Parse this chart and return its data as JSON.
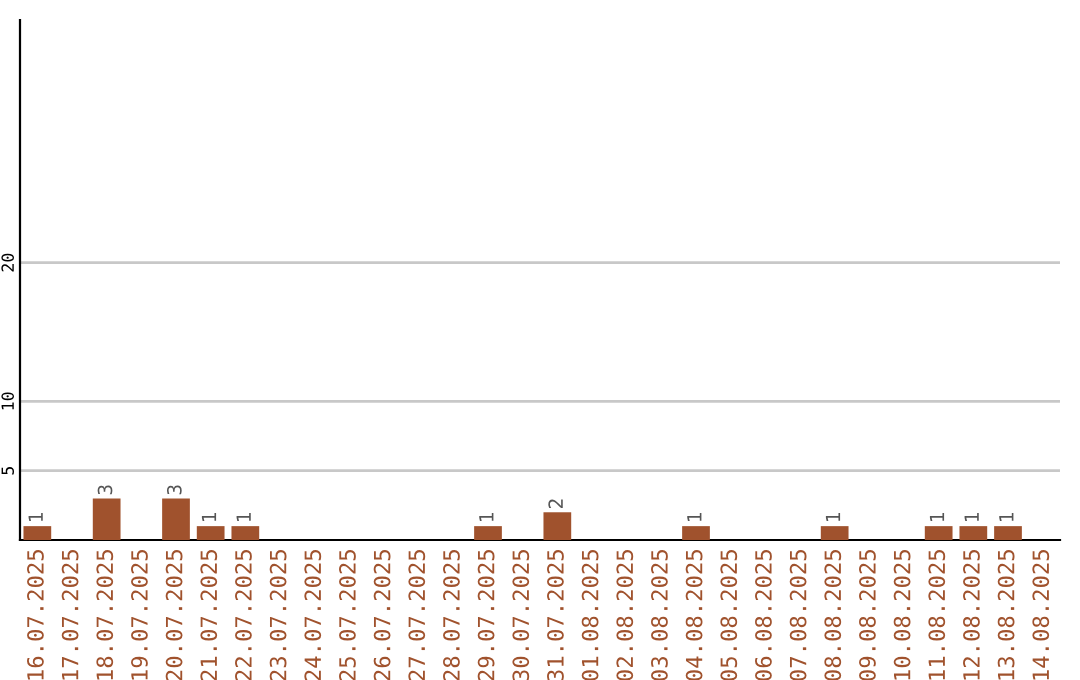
{
  "chart_data": {
    "type": "bar",
    "categories": [
      "16.07.2025",
      "17.07.2025",
      "18.07.2025",
      "19.07.2025",
      "20.07.2025",
      "21.07.2025",
      "22.07.2025",
      "23.07.2025",
      "24.07.2025",
      "25.07.2025",
      "26.07.2025",
      "27.07.2025",
      "28.07.2025",
      "29.07.2025",
      "30.07.2025",
      "31.07.2025",
      "01.08.2025",
      "02.08.2025",
      "03.08.2025",
      "04.08.2025",
      "05.08.2025",
      "06.08.2025",
      "07.08.2025",
      "08.08.2025",
      "09.08.2025",
      "10.08.2025",
      "11.08.2025",
      "12.08.2025",
      "13.08.2025",
      "14.08.2025"
    ],
    "values": [
      1,
      0,
      3,
      0,
      3,
      1,
      1,
      0,
      0,
      0,
      0,
      0,
      0,
      1,
      0,
      2,
      0,
      0,
      0,
      1,
      0,
      0,
      0,
      1,
      0,
      0,
      1,
      1,
      1,
      0
    ],
    "value_labels": [
      "1",
      null,
      "3",
      null,
      "3",
      "1",
      "1",
      null,
      null,
      null,
      null,
      null,
      null,
      "1",
      null,
      "2",
      null,
      null,
      null,
      "1",
      null,
      null,
      null,
      "1",
      null,
      null,
      "1",
      "1",
      "1",
      null
    ],
    "color": "#a0522d",
    "ylim": [
      0,
      37.5
    ],
    "yticks": [
      5,
      10,
      20
    ],
    "grid": "y"
  }
}
